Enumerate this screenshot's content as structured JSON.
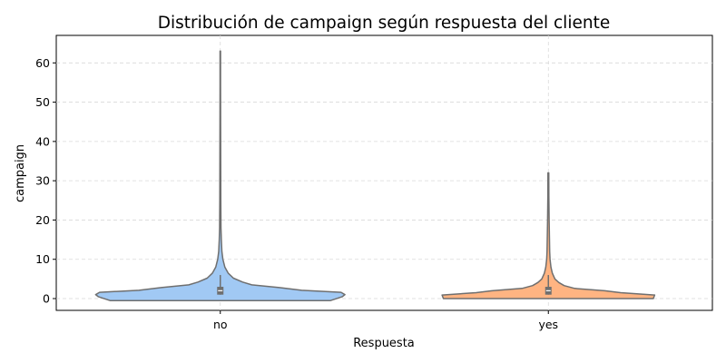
{
  "chart_data": {
    "type": "violin",
    "title": "Distribución de campaign según respuesta del cliente",
    "xlabel": "Respuesta",
    "ylabel": "campaign",
    "categories": [
      "no",
      "yes"
    ],
    "ylim": [
      -3,
      67
    ],
    "yticks": [
      0,
      10,
      20,
      30,
      40,
      50,
      60
    ],
    "grid": true,
    "series": [
      {
        "category": "no",
        "color": "#a1c9f4",
        "min": 1,
        "q1": 1,
        "median": 2,
        "q3": 3,
        "whisker_high": 6,
        "max": 63,
        "density": [
          [
            -0.5,
            0.84
          ],
          [
            0.5,
            0.93
          ],
          [
            1,
            0.95
          ],
          [
            1.6,
            0.92
          ],
          [
            2.1,
            0.62
          ],
          [
            2.8,
            0.45
          ],
          [
            3.5,
            0.24
          ],
          [
            4.2,
            0.17
          ],
          [
            5.2,
            0.1
          ],
          [
            6.5,
            0.06
          ],
          [
            8,
            0.035
          ],
          [
            10,
            0.02
          ],
          [
            12,
            0.012
          ],
          [
            15,
            0.008
          ],
          [
            18,
            0.005
          ],
          [
            25,
            0.004
          ],
          [
            35,
            0.003
          ],
          [
            45,
            0.0025
          ],
          [
            55,
            0.002
          ],
          [
            63,
            0.0015
          ]
        ]
      },
      {
        "category": "yes",
        "color": "#ffb482",
        "min": 1,
        "q1": 1,
        "median": 2,
        "q3": 3,
        "whisker_high": 6,
        "max": 32,
        "density": [
          [
            0,
            0.8
          ],
          [
            0.9,
            0.81
          ],
          [
            1.5,
            0.55
          ],
          [
            2,
            0.43
          ],
          [
            2.6,
            0.2
          ],
          [
            3.3,
            0.12
          ],
          [
            4.1,
            0.08
          ],
          [
            5,
            0.05
          ],
          [
            6.5,
            0.03
          ],
          [
            8,
            0.02
          ],
          [
            10,
            0.013
          ],
          [
            12,
            0.01
          ],
          [
            16,
            0.008
          ],
          [
            20,
            0.006
          ],
          [
            26,
            0.004
          ],
          [
            32,
            0.003
          ]
        ]
      }
    ]
  }
}
